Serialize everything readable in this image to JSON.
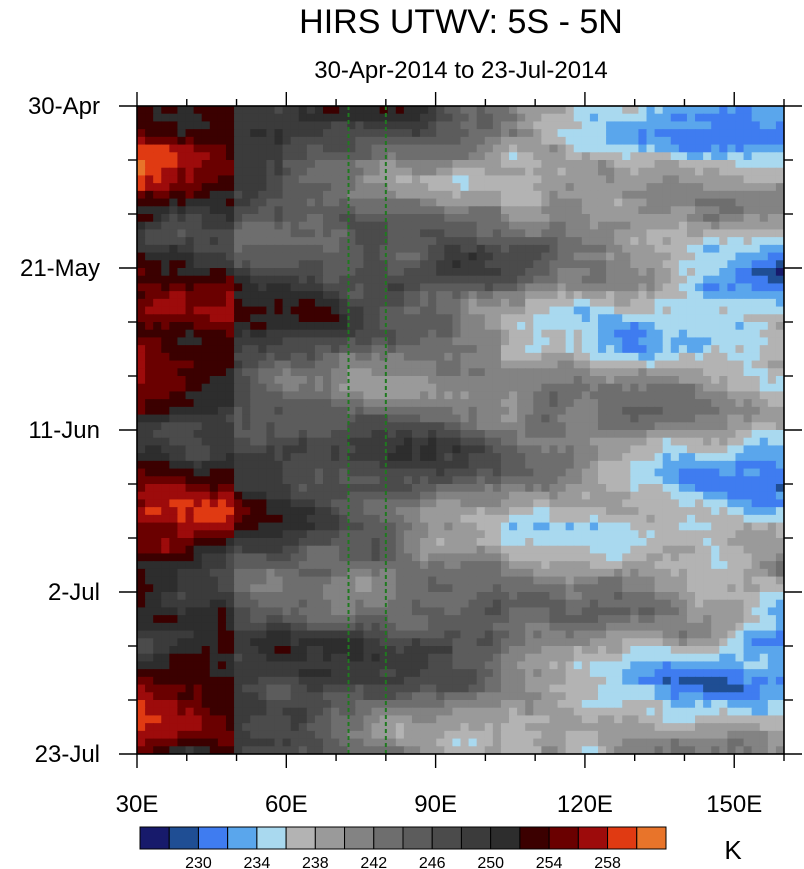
{
  "chart_data": {
    "type": "heatmap",
    "title": "HIRS UTWV: 5S - 5N",
    "subtitle": "30-Apr-2014 to 23-Jul-2014",
    "x_axis": {
      "range": [
        30,
        160
      ],
      "ticks": [
        30,
        60,
        90,
        120,
        150
      ],
      "tick_labels": [
        "30E",
        "60E",
        "90E",
        "120E",
        "150E"
      ]
    },
    "y_axis": {
      "range": [
        "2014-04-30",
        "2014-07-23"
      ],
      "ticks": [
        "2014-04-30",
        "2014-05-21",
        "2014-06-11",
        "2014-07-02",
        "2014-07-23"
      ],
      "tick_labels": [
        "30-Apr",
        "21-May",
        "11-Jun",
        "2-Jul",
        "23-Jul"
      ]
    },
    "reference_lines_lon": [
      72.5,
      80
    ],
    "colorbar": {
      "unit": "K",
      "levels": [
        228,
        230,
        232,
        234,
        236,
        238,
        240,
        242,
        244,
        246,
        248,
        250,
        252,
        254,
        256,
        258,
        260
      ],
      "labels": [
        "230",
        "234",
        "238",
        "242",
        "246",
        "250",
        "254",
        "258"
      ],
      "colors": [
        "#171a6b",
        "#1f4e94",
        "#3f7cf0",
        "#5aa6ec",
        "#a9d9ef",
        "#b3b3b3",
        "#9a9a9a",
        "#838383",
        "#6e6e6e",
        "#5c5c5c",
        "#4b4b4b",
        "#3b3b3b",
        "#2d2d2d",
        "#3b0000",
        "#6a0000",
        "#9d0b0b",
        "#e03a12",
        "#e8742a"
      ]
    },
    "grid": false,
    "legend_placement": "bottom"
  }
}
